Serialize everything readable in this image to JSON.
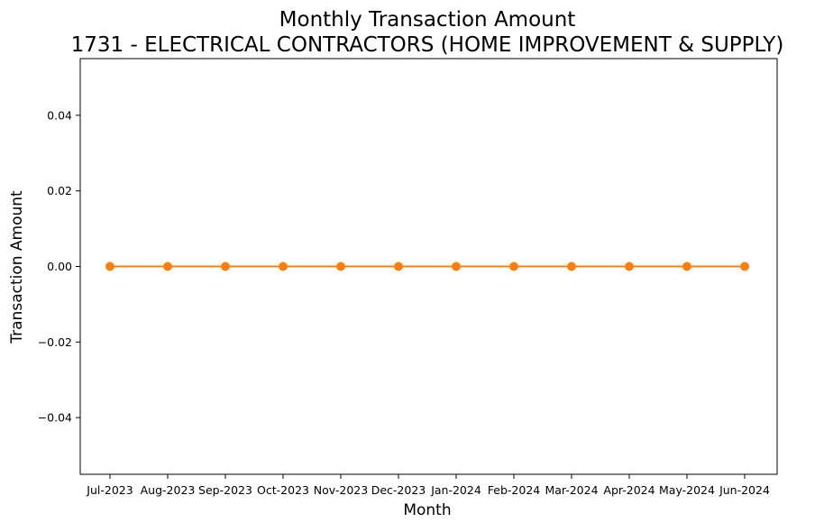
{
  "chart_data": {
    "type": "line",
    "title_line1": "Monthly Transaction Amount",
    "title_line2": "1731 - ELECTRICAL CONTRACTORS (HOME IMPROVEMENT & SUPPLY)",
    "xlabel": "Month",
    "ylabel": "Transaction Amount",
    "categories": [
      "Jul-2023",
      "Aug-2023",
      "Sep-2023",
      "Oct-2023",
      "Nov-2023",
      "Dec-2023",
      "Jan-2024",
      "Feb-2024",
      "Mar-2024",
      "Apr-2024",
      "May-2024",
      "Jun-2024"
    ],
    "series": [
      {
        "values": [
          0,
          0,
          0,
          0,
          0,
          0,
          0,
          0,
          0,
          0,
          0,
          0
        ],
        "color": "#ff7f0e",
        "marker": "circle"
      }
    ],
    "ylim": [
      -0.055,
      0.055
    ],
    "yticks": [
      -0.04,
      -0.02,
      0.0,
      0.02,
      0.04
    ],
    "ytick_labels": [
      "−0.04",
      "−0.02",
      "0.00",
      "0.02",
      "0.04"
    ],
    "grid": false,
    "legend": "none"
  }
}
